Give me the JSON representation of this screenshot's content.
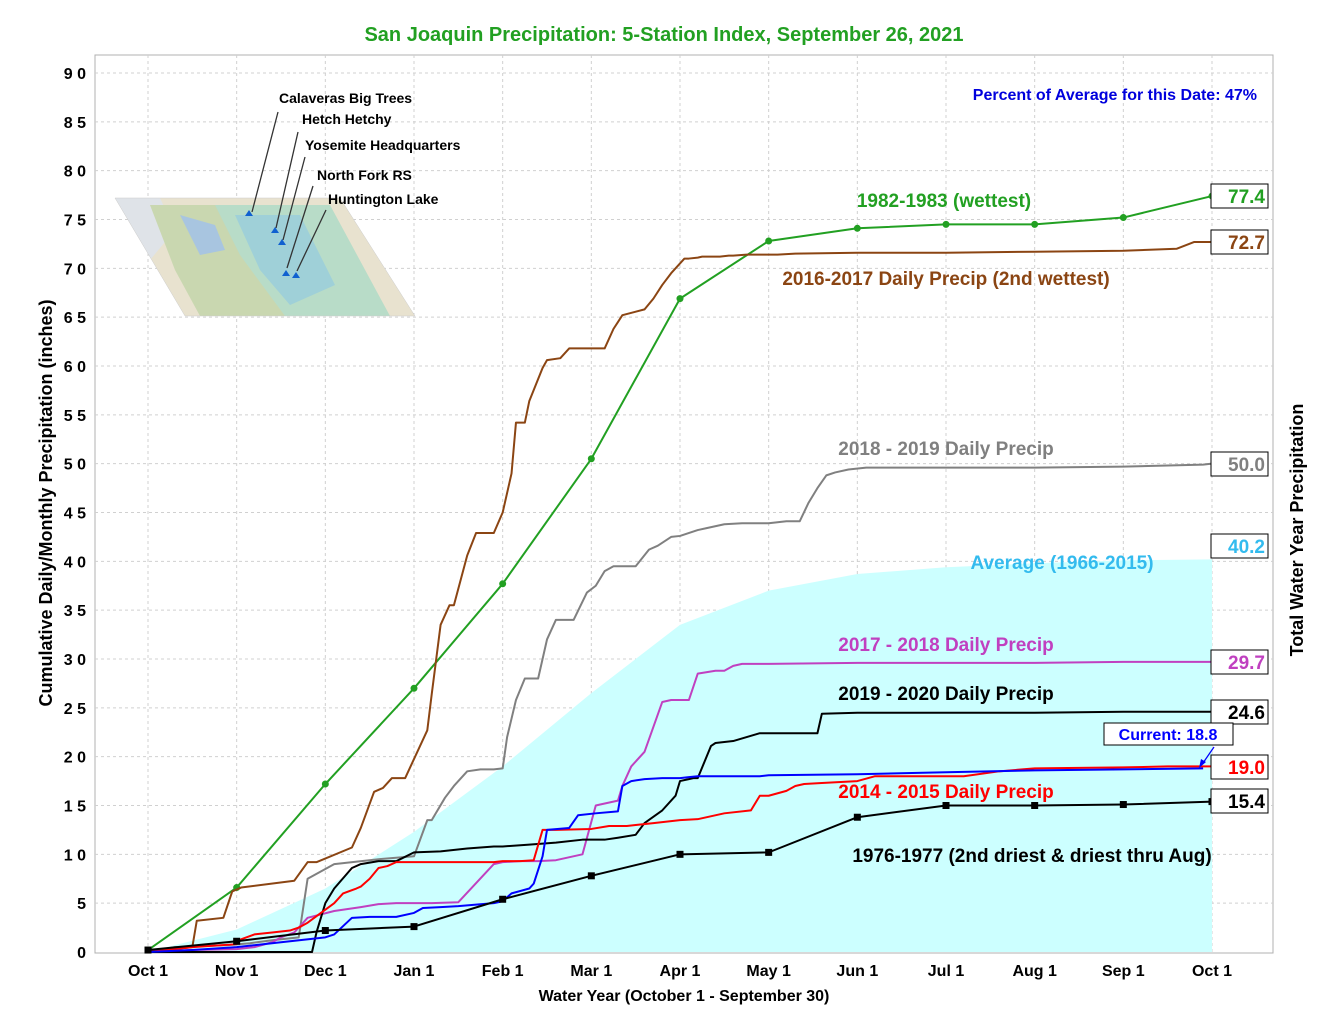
{
  "chart_data": {
    "type": "line",
    "title": "San Joaquin Precipitation: 5-Station Index, September 26, 2021",
    "xlabel": "Water Year (October 1 - September 30)",
    "ylabel": "Cumulative Daily/Monthly Precipitation (inches)",
    "ylabel_right": "Total Water Year Precipitation",
    "xlim": [
      0,
      12
    ],
    "ylim": [
      0,
      90
    ],
    "yticks": [
      0,
      5,
      10,
      15,
      20,
      25,
      30,
      35,
      40,
      45,
      50,
      55,
      60,
      65,
      70,
      75,
      80,
      85,
      90
    ],
    "ytick_labels": [
      "0",
      "5",
      "1 0",
      "1 5",
      "2 0",
      "2 5",
      "3 0",
      "3 5",
      "4 0",
      "4 5",
      "5 0",
      "5 5",
      "6 0",
      "6 5",
      "7 0",
      "7 5",
      "8 0",
      "8 5",
      "9 0"
    ],
    "xtick_labels": [
      "Oct 1",
      "Nov 1",
      "Dec 1",
      "Jan 1",
      "Feb 1",
      "Mar 1",
      "Apr 1",
      "May 1",
      "Jun 1",
      "Jul 1",
      "Aug 1",
      "Sep 1",
      "Oct 1"
    ],
    "grid": true,
    "percent_of_average": "Percent of Average for this Date: 47%",
    "current_label": "Current: 18.8",
    "map_labels": [
      "Calaveras Big Trees",
      "Hetch Hetchy",
      "Yosemite Headquarters",
      "North Fork RS",
      "Huntington Lake"
    ],
    "average": {
      "name": "Average (1966-2015)",
      "color": "#ccffff",
      "label_color": "#33bbee",
      "total": "40.2",
      "x": [
        0,
        1,
        2,
        3,
        4,
        5,
        6,
        7,
        8,
        9,
        10,
        11,
        12
      ],
      "y": [
        0,
        2.3,
        6.5,
        12.3,
        19.0,
        26.5,
        33.5,
        37.0,
        38.7,
        39.4,
        39.8,
        40.1,
        40.2
      ]
    },
    "series": [
      {
        "name": "1982-1983 (wettest)",
        "color": "#22a022",
        "total": "77.4",
        "markers": "circle",
        "x": [
          0,
          1,
          2,
          3,
          4,
          5,
          6,
          7,
          8,
          9,
          10,
          11,
          12
        ],
        "y": [
          0.2,
          6.6,
          17.2,
          27.0,
          37.7,
          50.5,
          66.9,
          72.8,
          74.1,
          74.5,
          74.5,
          75.2,
          77.4
        ]
      },
      {
        "name": "2016-2017 Daily Precip (2nd wettest)",
        "color": "#8b4513",
        "total": "72.7",
        "markers": "none",
        "x": [
          0,
          0.5,
          0.55,
          0.85,
          0.95,
          1.05,
          1.65,
          1.8,
          1.9,
          2.3,
          2.4,
          2.55,
          2.65,
          2.75,
          2.9,
          3.15,
          3.2,
          3.3,
          3.4,
          3.45,
          3.6,
          3.7,
          3.8,
          3.9,
          4.0,
          4.1,
          4.15,
          4.25,
          4.3,
          4.45,
          4.5,
          4.65,
          4.75,
          4.85,
          4.95,
          5.15,
          5.25,
          5.3,
          5.35,
          5.6,
          5.7,
          5.8,
          5.9,
          6.05,
          6.1,
          6.2,
          6.25,
          6.4,
          6.45,
          6.55,
          6.6,
          6.75,
          6.9,
          7.0,
          7.1,
          7.3,
          8.0,
          9.0,
          10.0,
          11.0,
          11.6,
          11.8,
          12.0
        ],
        "y": [
          0,
          0.5,
          3.2,
          3.5,
          6.2,
          6.6,
          7.3,
          9.2,
          9.2,
          10.7,
          12.7,
          16.4,
          16.8,
          17.8,
          17.8,
          22.7,
          26.4,
          33.5,
          35.5,
          35.5,
          40.6,
          42.9,
          42.9,
          42.9,
          45.0,
          49.0,
          54.2,
          54.2,
          56.4,
          59.8,
          60.6,
          60.8,
          61.8,
          61.8,
          61.8,
          61.8,
          63.8,
          64.5,
          65.2,
          65.8,
          66.9,
          68.3,
          69.5,
          71.0,
          71.0,
          71.1,
          71.2,
          71.2,
          71.2,
          71.3,
          71.3,
          71.4,
          71.4,
          71.4,
          71.4,
          71.5,
          71.6,
          71.6,
          71.7,
          71.8,
          72.0,
          72.7,
          72.7
        ]
      },
      {
        "name": "2018 - 2019 Daily Precip",
        "color": "#808080",
        "total": "50.0",
        "markers": "none",
        "x": [
          0,
          0.3,
          0.9,
          1.15,
          1.4,
          1.7,
          1.8,
          1.9,
          2.1,
          2.6,
          3.0,
          3.15,
          3.2,
          3.35,
          3.45,
          3.6,
          3.75,
          3.9,
          4.0,
          4.05,
          4.15,
          4.25,
          4.4,
          4.5,
          4.6,
          4.8,
          4.95,
          5.05,
          5.15,
          5.25,
          5.5,
          5.65,
          5.75,
          5.9,
          6.0,
          6.2,
          6.3,
          6.5,
          6.7,
          7.0,
          7.2,
          7.35,
          7.45,
          7.55,
          7.65,
          7.75,
          7.9,
          8.1,
          9.0,
          10.0,
          11.0,
          11.9,
          12.0
        ],
        "y": [
          0,
          0.5,
          0.7,
          0.9,
          1.2,
          1.5,
          7.5,
          8.0,
          9.0,
          9.5,
          9.8,
          13.5,
          13.5,
          15.8,
          17.0,
          18.5,
          18.7,
          18.7,
          18.8,
          22.0,
          25.8,
          28.0,
          28.0,
          32.0,
          34.0,
          34.0,
          36.8,
          37.5,
          39.0,
          39.5,
          39.5,
          41.2,
          41.6,
          42.5,
          42.6,
          43.2,
          43.4,
          43.8,
          43.9,
          43.9,
          44.1,
          44.1,
          46.0,
          47.5,
          48.8,
          49.1,
          49.4,
          49.6,
          49.6,
          49.6,
          49.7,
          49.9,
          50.0
        ]
      },
      {
        "name": "2017 - 2018 Daily Precip",
        "color": "#c040c0",
        "total": "29.7",
        "markers": "none",
        "x": [
          0,
          0.5,
          1.0,
          1.2,
          1.4,
          1.5,
          1.65,
          1.8,
          2.1,
          2.4,
          2.6,
          2.8,
          3.2,
          3.5,
          3.9,
          4.0,
          4.2,
          4.4,
          4.6,
          4.9,
          5.05,
          5.1,
          5.3,
          5.35,
          5.45,
          5.6,
          5.8,
          5.9,
          6.1,
          6.2,
          6.4,
          6.5,
          6.6,
          6.7,
          7.0,
          8.0,
          9.0,
          10.0,
          11.0,
          12.0
        ],
        "y": [
          0,
          0.2,
          0.3,
          0.5,
          1.0,
          1.5,
          2.0,
          3.5,
          4.2,
          4.6,
          4.9,
          5.0,
          5.0,
          5.1,
          9.0,
          9.2,
          9.3,
          9.3,
          9.4,
          10.0,
          15.0,
          15.1,
          15.5,
          17.0,
          19.0,
          20.5,
          25.6,
          25.8,
          25.8,
          28.5,
          28.8,
          28.8,
          29.3,
          29.5,
          29.5,
          29.6,
          29.6,
          29.6,
          29.7,
          29.7
        ]
      },
      {
        "name": "2019 - 2020 Daily Precip",
        "color": "#000000",
        "total": "24.6",
        "markers": "none",
        "x": [
          0,
          1.0,
          1.85,
          1.9,
          2.0,
          2.1,
          2.3,
          2.4,
          2.6,
          2.8,
          3.0,
          3.3,
          3.6,
          3.9,
          4.0,
          4.3,
          4.6,
          4.9,
          5.15,
          5.3,
          5.5,
          5.6,
          5.8,
          5.95,
          6.0,
          6.1,
          6.15,
          6.2,
          6.35,
          6.4,
          6.6,
          6.9,
          7.0,
          7.3,
          7.55,
          7.6,
          8.0,
          9.0,
          10.0,
          11.0,
          12.0
        ],
        "y": [
          0,
          0,
          0,
          2.0,
          5.0,
          6.5,
          8.6,
          9.0,
          9.3,
          9.3,
          10.2,
          10.3,
          10.6,
          10.8,
          10.8,
          11.0,
          11.2,
          11.5,
          11.5,
          11.7,
          12.0,
          13.2,
          14.5,
          16.0,
          17.5,
          17.7,
          17.8,
          17.8,
          21.1,
          21.4,
          21.6,
          22.4,
          22.4,
          22.4,
          22.4,
          24.4,
          24.5,
          24.5,
          24.5,
          24.6,
          24.6
        ]
      },
      {
        "name": "2014 - 2015 Daily Precip",
        "color": "#ff0000",
        "total": "19.0",
        "markers": "none",
        "x": [
          0,
          0.5,
          1.0,
          1.05,
          1.2,
          1.4,
          1.6,
          1.7,
          1.8,
          2.1,
          2.2,
          2.35,
          2.4,
          2.5,
          2.6,
          2.7,
          2.8,
          3.2,
          3.5,
          3.9,
          4.0,
          4.2,
          4.35,
          4.45,
          4.6,
          5.0,
          5.2,
          5.4,
          5.5,
          5.7,
          6.0,
          6.2,
          6.5,
          6.8,
          6.9,
          7.0,
          7.2,
          7.3,
          7.4,
          7.6,
          8.0,
          8.2,
          8.3,
          8.8,
          9.2,
          9.6,
          10.0,
          11.0,
          11.5,
          11.8,
          12.0
        ],
        "y": [
          0,
          0.5,
          0.8,
          1.3,
          1.8,
          2.0,
          2.2,
          2.5,
          3.0,
          5.0,
          6.0,
          6.5,
          6.7,
          7.5,
          8.6,
          8.8,
          9.2,
          9.2,
          9.2,
          9.2,
          9.3,
          9.3,
          9.4,
          12.5,
          12.5,
          12.6,
          12.9,
          12.9,
          13.0,
          13.2,
          13.5,
          13.6,
          14.2,
          14.5,
          16.0,
          16.0,
          16.5,
          17.0,
          17.2,
          17.3,
          17.5,
          18.0,
          18.0,
          18.0,
          18.0,
          18.5,
          18.8,
          18.9,
          19.0,
          19.0,
          19.0
        ]
      },
      {
        "name": "",
        "color": "#0000ff",
        "total": "",
        "markers": "none",
        "x": [
          0,
          0.5,
          1.0,
          1.5,
          2.0,
          2.1,
          2.3,
          2.5,
          2.8,
          3.0,
          3.1,
          3.3,
          3.5,
          3.9,
          4.0,
          4.1,
          4.3,
          4.35,
          4.45,
          4.5,
          4.75,
          4.85,
          5.05,
          5.3,
          5.35,
          5.45,
          5.6,
          5.8,
          5.9,
          6.0,
          6.1,
          6.2,
          6.5,
          6.9,
          7.0,
          8.0,
          9.0,
          10.0,
          11.0,
          11.9
        ],
        "y": [
          0,
          0.2,
          0.5,
          1.0,
          1.5,
          1.8,
          3.5,
          3.6,
          3.6,
          4.0,
          4.5,
          4.6,
          4.7,
          5.0,
          5.2,
          6.0,
          6.5,
          7.0,
          9.8,
          12.5,
          12.7,
          14.0,
          14.2,
          14.4,
          17.0,
          17.5,
          17.7,
          17.8,
          17.8,
          17.8,
          17.9,
          18.0,
          18.0,
          18.0,
          18.1,
          18.2,
          18.4,
          18.6,
          18.7,
          18.8
        ]
      },
      {
        "name": "1976-1977 (2nd driest & driest thru Aug)",
        "color": "#000000",
        "total": "15.4",
        "markers": "square",
        "x": [
          0,
          1,
          2,
          3,
          4,
          5,
          6,
          7,
          8,
          9,
          10,
          11,
          12
        ],
        "y": [
          0.2,
          1.1,
          2.2,
          2.6,
          5.4,
          7.8,
          10.0,
          10.2,
          13.8,
          15.0,
          15.0,
          15.1,
          15.4
        ]
      }
    ]
  }
}
